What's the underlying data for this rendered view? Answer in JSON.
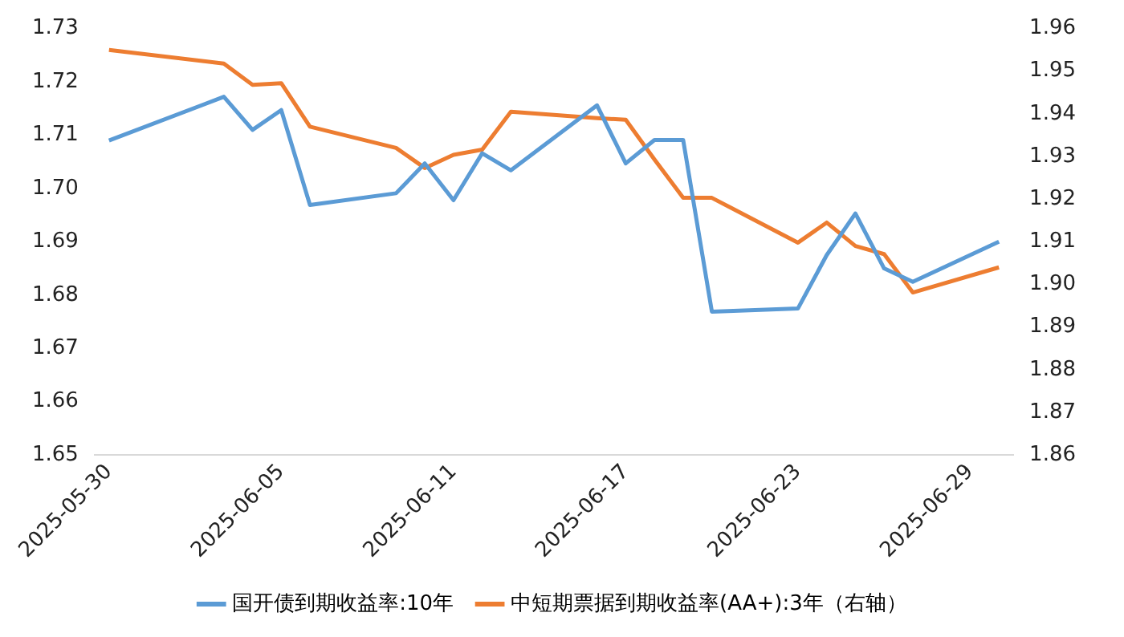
{
  "chart_data": {
    "type": "line",
    "x": [
      "2025-05-30",
      "2025-06-03",
      "2025-06-04",
      "2025-06-05",
      "2025-06-06",
      "2025-06-09",
      "2025-06-10",
      "2025-06-11",
      "2025-06-12",
      "2025-06-13",
      "2025-06-16",
      "2025-06-17",
      "2025-06-18",
      "2025-06-19",
      "2025-06-20",
      "2025-06-23",
      "2025-06-24",
      "2025-06-25",
      "2025-06-26",
      "2025-06-27",
      "2025-06-30"
    ],
    "series": [
      {
        "name": "国开债到期收益率:10年",
        "color": "#5b9bd5",
        "values": [
          1.709,
          1.7172,
          1.711,
          1.7147,
          1.6969,
          1.6991,
          1.7047,
          1.6978,
          1.7066,
          1.7034,
          1.7156,
          1.7047,
          1.7091,
          1.7091,
          1.6769,
          1.6775,
          1.6875,
          1.6953,
          1.685,
          1.6825,
          1.69
        ]
      },
      {
        "name": "中短期票据到期收益率(AA+):3年（右轴）",
        "color": "#ed7d31",
        "axis": "y2",
        "values": [
          1.955,
          1.9518,
          1.9468,
          1.9472,
          1.937,
          1.932,
          1.9273,
          1.9304,
          1.9316,
          1.9405,
          1.939,
          1.9386,
          1.9293,
          1.9203,
          1.9203,
          1.9098,
          1.9145,
          1.909,
          1.9071,
          1.8981,
          1.904
        ]
      }
    ],
    "xlim": [
      "2025-05-29T12:00",
      "2025-06-30T12:00"
    ],
    "xticks": [
      "2025-05-30",
      "2025-06-05",
      "2025-06-11",
      "2025-06-17",
      "2025-06-23",
      "2025-06-29"
    ],
    "ylim": [
      1.65,
      1.73
    ],
    "yticks": [
      1.65,
      1.66,
      1.67,
      1.68,
      1.69,
      {
        "value": 1.7,
        "label": "1.70"
      },
      1.71,
      1.72,
      1.73
    ],
    "y2lim": [
      1.86,
      1.96
    ],
    "y2ticks": [
      1.86,
      1.87,
      1.88,
      1.89,
      {
        "value": 1.9,
        "label": "1.90"
      },
      1.91,
      1.92,
      1.93,
      1.94,
      1.95,
      1.96
    ],
    "legend": "bottom",
    "marker": "none",
    "line_style": "solid"
  }
}
